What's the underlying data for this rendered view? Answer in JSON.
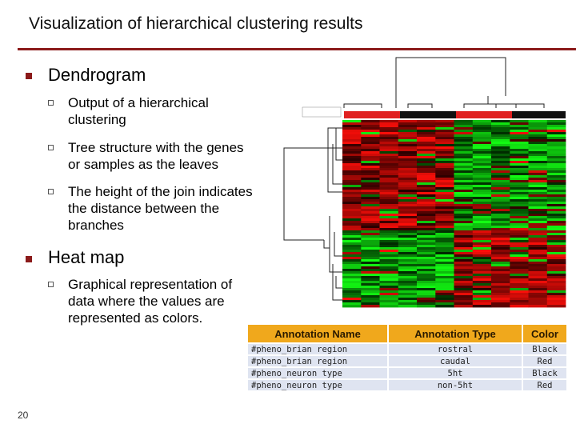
{
  "slide": {
    "title": "Visualization of hierarchical clustering results",
    "page_number": "20"
  },
  "bullets": {
    "dendrogram": {
      "heading": "Dendrogram",
      "items": [
        [
          "Output of a hierarchical",
          "clustering"
        ],
        [
          "Tree structure with the genes",
          "or samples as the leaves"
        ],
        [
          "The height of the join indicates",
          "the distance between the",
          "branches"
        ]
      ]
    },
    "heatmap": {
      "heading": "Heat map",
      "items": [
        [
          "Graphical representation of",
          "data where the values are",
          "represented as colors."
        ]
      ]
    }
  },
  "annotation_table": {
    "headers": [
      "Annotation Name",
      "Annotation Type",
      "Color"
    ],
    "rows": [
      [
        "#pheno_brian region",
        "rostral",
        "Black"
      ],
      [
        "#pheno_brian region",
        "caudal",
        "Red"
      ],
      [
        "#pheno_neuron type",
        "5ht",
        "Black"
      ],
      [
        "#pheno_neuron type",
        "non-5ht",
        "Red"
      ]
    ]
  },
  "colors": {
    "accent": "#8b1a1a",
    "heat_high": "#ff2a2a",
    "heat_low": "#22dd22",
    "table_header": "#f0a81c",
    "table_cell": "#dfe4f1"
  }
}
